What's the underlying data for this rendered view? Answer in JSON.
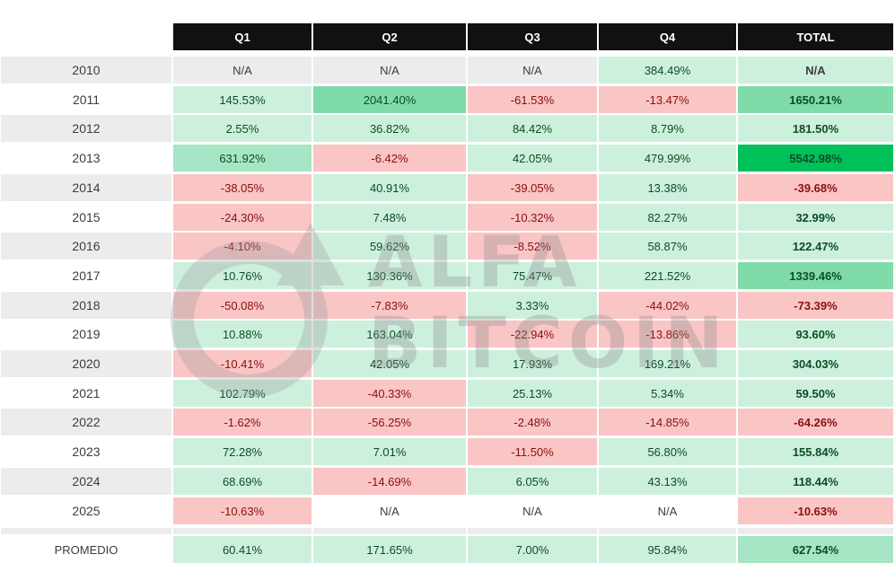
{
  "columns": [
    "Q1",
    "Q2",
    "Q3",
    "Q4",
    "TOTAL"
  ],
  "rows": [
    {
      "year": "2010",
      "cells": [
        "N/A",
        "N/A",
        "N/A",
        "384.49%",
        "N/A"
      ]
    },
    {
      "year": "2011",
      "cells": [
        "145.53%",
        "2041.40%",
        "-61.53%",
        "-13.47%",
        "1650.21%"
      ]
    },
    {
      "year": "2012",
      "cells": [
        "2.55%",
        "36.82%",
        "84.42%",
        "8.79%",
        "181.50%"
      ]
    },
    {
      "year": "2013",
      "cells": [
        "631.92%",
        "-6.42%",
        "42.05%",
        "479.99%",
        "5542.98%"
      ]
    },
    {
      "year": "2014",
      "cells": [
        "-38.05%",
        "40.91%",
        "-39.05%",
        "13.38%",
        "-39.68%"
      ]
    },
    {
      "year": "2015",
      "cells": [
        "-24.30%",
        "7.48%",
        "-10.32%",
        "82.27%",
        "32.99%"
      ]
    },
    {
      "year": "2016",
      "cells": [
        "-4.10%",
        "59.62%",
        "-8.52%",
        "58.87%",
        "122.47%"
      ]
    },
    {
      "year": "2017",
      "cells": [
        "10.76%",
        "130.36%",
        "75.47%",
        "221.52%",
        "1339.46%"
      ]
    },
    {
      "year": "2018",
      "cells": [
        "-50.08%",
        "-7.83%",
        "3.33%",
        "-44.02%",
        "-73.39%"
      ]
    },
    {
      "year": "2019",
      "cells": [
        "10.88%",
        "163.04%",
        "-22.94%",
        "-13.86%",
        "93.60%"
      ]
    },
    {
      "year": "2020",
      "cells": [
        "-10.41%",
        "42.05%",
        "17.93%",
        "169.21%",
        "304.03%"
      ]
    },
    {
      "year": "2021",
      "cells": [
        "102.79%",
        "-40.33%",
        "25.13%",
        "5.34%",
        "59.50%"
      ]
    },
    {
      "year": "2022",
      "cells": [
        "-1.62%",
        "-56.25%",
        "-2.48%",
        "-14.85%",
        "-64.26%"
      ]
    },
    {
      "year": "2023",
      "cells": [
        "72.28%",
        "7.01%",
        "-11.50%",
        "56.80%",
        "155.84%"
      ]
    },
    {
      "year": "2024",
      "cells": [
        "68.69%",
        "-14.69%",
        "6.05%",
        "43.13%",
        "118.44%"
      ]
    },
    {
      "year": "2025",
      "cells": [
        "-10.63%",
        "N/A",
        "N/A",
        "N/A",
        "-10.63%"
      ]
    }
  ],
  "average": {
    "label": "PROMEDIO",
    "cells": [
      "60.41%",
      "171.65%",
      "7.00%",
      "95.84%",
      "627.54%"
    ]
  },
  "watermark": {
    "line1": "ALFA",
    "line2": "BITCOIN"
  },
  "colors": {
    "header_bg": "#111111",
    "header_text": "#ffffff",
    "positive_light": "#cdf0dd",
    "positive_mid": "#a6e6c4",
    "positive_strong": "#7fdcaa",
    "positive_max": "#00c05a",
    "negative": "#f9c5c5",
    "neutral_gray": "#ececec",
    "neutral_white": "#ffffff"
  }
}
